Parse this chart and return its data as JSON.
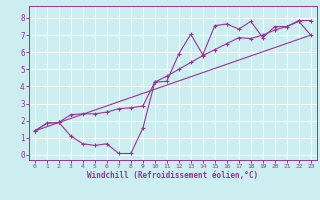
{
  "xlabel": "Windchill (Refroidissement éolien,°C)",
  "bg_color": "#cceef0",
  "line_color": "#993399",
  "markersize": 3,
  "linewidth": 0.8,
  "xlim": [
    -0.5,
    23.5
  ],
  "ylim": [
    -0.3,
    8.7
  ],
  "xticks": [
    0,
    1,
    2,
    3,
    4,
    5,
    6,
    7,
    8,
    9,
    10,
    11,
    12,
    13,
    14,
    15,
    16,
    17,
    18,
    19,
    20,
    21,
    22,
    23
  ],
  "yticks": [
    0,
    1,
    2,
    3,
    4,
    5,
    6,
    7,
    8
  ],
  "line1_x": [
    0,
    1,
    2,
    3,
    4,
    5,
    6,
    7,
    8,
    9,
    10,
    11,
    12,
    13,
    14,
    15,
    16,
    17,
    18,
    19,
    20,
    21,
    22,
    23
  ],
  "line1_y": [
    1.4,
    1.85,
    1.9,
    1.1,
    0.65,
    0.55,
    0.65,
    0.08,
    0.08,
    1.55,
    4.25,
    4.3,
    5.9,
    7.05,
    5.85,
    7.55,
    7.65,
    7.35,
    7.8,
    6.85,
    7.5,
    7.5,
    7.85,
    7.85
  ],
  "line2_x": [
    0,
    1,
    2,
    3,
    4,
    5,
    6,
    7,
    8,
    9,
    10,
    11,
    12,
    13,
    14,
    15,
    16,
    17,
    18,
    19,
    20,
    21,
    22,
    23
  ],
  "line2_y": [
    1.4,
    1.85,
    1.9,
    2.35,
    2.4,
    2.4,
    2.5,
    2.7,
    2.75,
    2.85,
    4.25,
    4.6,
    5.0,
    5.4,
    5.8,
    6.15,
    6.5,
    6.85,
    6.8,
    7.0,
    7.3,
    7.5,
    7.8,
    7.0
  ],
  "line3_x": [
    0,
    23
  ],
  "line3_y": [
    1.4,
    7.0
  ]
}
